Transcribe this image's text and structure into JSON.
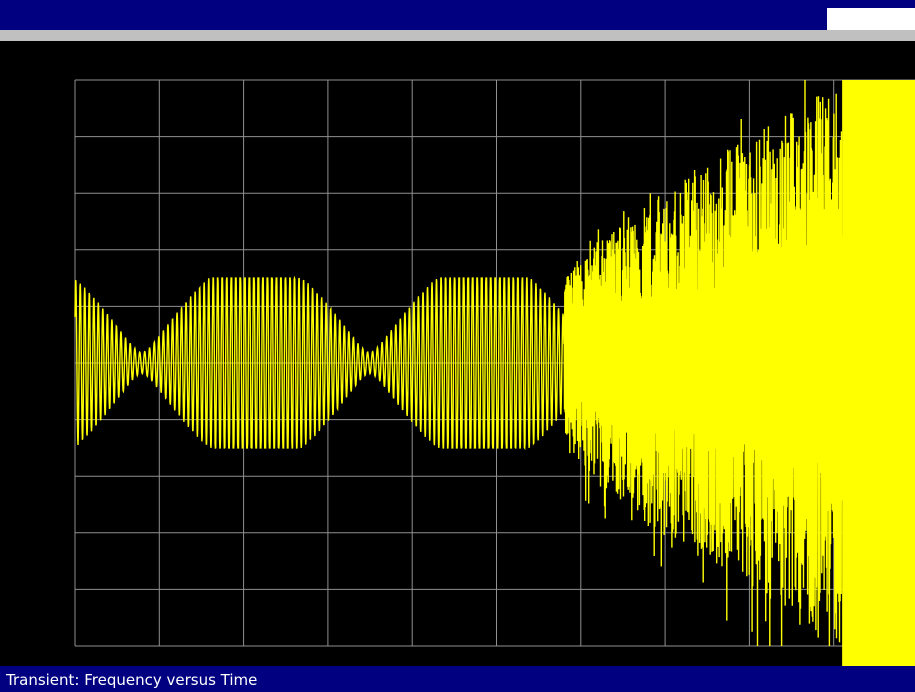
{
  "status_bar": {
    "text": "Transient: Frequency versus Time"
  },
  "colors": {
    "title_bar": "#000080",
    "status_bar": "#000080",
    "plot_background": "#000000",
    "grid": "#909090",
    "trace": "#ffff00"
  },
  "chart_data": {
    "type": "line",
    "title": "",
    "xlabel": "",
    "ylabel": "",
    "grid": true,
    "grid_divisions": {
      "x": 10,
      "y": 10
    },
    "legend": "none",
    "series": [
      {
        "description_free": true,
        "segments": [
          {
            "x_start": 0.0,
            "x_end": 5.8,
            "behavior": "steady oscillation",
            "amplitude": 1.5
          },
          {
            "x_start": 5.8,
            "x_end": 9.1,
            "behavior": "growing oscillation",
            "amplitude_start": 1.5,
            "amplitude_end": 5.0
          },
          {
            "x_start": 9.1,
            "x_end": 10.0,
            "behavior": "saturated",
            "amplitude": 5.0
          }
        ]
      }
    ],
    "xlim": [
      0,
      10
    ],
    "ylim": [
      -5,
      5
    ]
  }
}
